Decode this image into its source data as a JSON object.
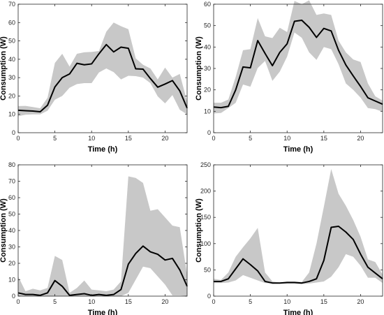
{
  "chart_data": [
    {
      "type": "area",
      "xlabel": "Time (h)",
      "ylabel": "Consumption (W)",
      "xlim": [
        0,
        23
      ],
      "ylim": [
        0,
        70
      ],
      "xticks": [
        0,
        5,
        10,
        15,
        20
      ],
      "yticks": [
        0,
        10,
        20,
        30,
        40,
        50,
        60,
        70
      ],
      "grid": false,
      "x": [
        0,
        1,
        2,
        3,
        4,
        5,
        6,
        7,
        8,
        9,
        10,
        11,
        12,
        13,
        14,
        15,
        16,
        17,
        18,
        19,
        20,
        21,
        22,
        23
      ],
      "series": [
        {
          "role": "mean",
          "values": [
            12.2,
            12,
            11.8,
            11.4,
            15,
            24.9,
            30,
            32,
            37.8,
            37,
            37.5,
            43,
            48,
            44,
            46.6,
            46,
            34.8,
            34.6,
            29.5,
            24.8,
            26.5,
            28.4,
            22.8,
            13.4
          ]
        },
        {
          "role": "upper",
          "values": [
            14.5,
            14.6,
            14,
            13.3,
            19,
            38,
            43,
            36,
            43,
            43.8,
            44,
            44.5,
            55,
            60,
            58,
            56.4,
            40.5,
            37,
            35,
            29,
            35.5,
            30,
            32,
            17
          ]
        },
        {
          "role": "lower",
          "values": [
            9,
            9.8,
            10,
            10,
            12,
            18,
            20,
            24.5,
            26.5,
            27,
            27,
            32.8,
            35,
            33,
            29,
            31,
            30.8,
            30,
            27,
            19.8,
            16,
            20.5,
            12.5,
            10
          ]
        }
      ]
    },
    {
      "type": "area",
      "xlabel": "Time (h)",
      "ylabel": "Consumption (W)",
      "xlim": [
        0,
        23
      ],
      "ylim": [
        0,
        60
      ],
      "xticks": [
        0,
        5,
        10,
        15,
        20
      ],
      "yticks": [
        0,
        10,
        20,
        30,
        40,
        50,
        60
      ],
      "grid": false,
      "x": [
        0,
        1,
        2,
        3,
        4,
        5,
        6,
        7,
        8,
        9,
        10,
        11,
        12,
        13,
        14,
        15,
        16,
        17,
        18,
        19,
        20,
        21,
        22,
        23
      ],
      "series": [
        {
          "role": "mean",
          "values": [
            12,
            11.7,
            12.3,
            20,
            30.7,
            30.3,
            43,
            37,
            31.3,
            37.5,
            41.5,
            52,
            52.5,
            49.2,
            44.5,
            48.7,
            47.5,
            38.5,
            31.6,
            26.5,
            21.6,
            16.3,
            14.8,
            13.3
          ]
        },
        {
          "role": "upper",
          "values": [
            14,
            14,
            15.5,
            26,
            38.5,
            39,
            53.5,
            45,
            44.2,
            49,
            47,
            61.5,
            60,
            61.8,
            55,
            55.7,
            55,
            43,
            37.5,
            34.2,
            33,
            23,
            17,
            15
          ]
        },
        {
          "role": "lower",
          "values": [
            9,
            9.2,
            11.5,
            14,
            22.5,
            21.5,
            30.2,
            33.5,
            24.2,
            28.5,
            35.5,
            46.8,
            44.3,
            37.5,
            34,
            40,
            39,
            32,
            23,
            20,
            16.4,
            11.5,
            11,
            9.8
          ]
        }
      ]
    },
    {
      "type": "area",
      "xlabel": "Time (h)",
      "ylabel": "Consumption (W)",
      "xlim": [
        0,
        23
      ],
      "ylim": [
        0,
        80
      ],
      "xticks": [
        0,
        5,
        10,
        15,
        20
      ],
      "yticks": [
        0,
        10,
        20,
        30,
        40,
        50,
        60,
        70,
        80
      ],
      "grid": false,
      "x": [
        0,
        1,
        2,
        3,
        4,
        5,
        6,
        7,
        8,
        9,
        10,
        11,
        12,
        13,
        14,
        15,
        16,
        17,
        18,
        19,
        20,
        21,
        22,
        23
      ],
      "series": [
        {
          "role": "mean",
          "values": [
            2,
            1,
            1,
            0.5,
            2,
            9.5,
            6,
            0.5,
            1,
            1.5,
            0.5,
            1,
            0.5,
            1,
            4,
            19.5,
            26,
            30.5,
            27,
            25.5,
            22,
            23,
            16,
            6
          ]
        },
        {
          "role": "upper",
          "values": [
            12,
            3,
            4.5,
            3.5,
            5,
            24.5,
            22,
            2,
            5,
            9.5,
            4,
            3.5,
            3,
            4,
            9,
            73,
            72,
            69,
            52,
            53,
            48,
            43,
            42,
            13
          ]
        },
        {
          "role": "lower",
          "values": [
            0,
            0,
            0,
            0,
            0,
            0,
            0,
            0,
            0,
            0,
            0,
            0,
            0,
            0,
            0,
            2,
            10,
            18,
            17,
            12,
            7,
            0.5,
            0.5,
            0
          ]
        }
      ]
    },
    {
      "type": "area",
      "xlabel": "Time (h)",
      "ylabel": "Consumption (W)",
      "xlim": [
        0,
        23
      ],
      "ylim": [
        0,
        250
      ],
      "xticks": [
        0,
        5,
        10,
        15,
        20
      ],
      "yticks": [
        0,
        50,
        100,
        150,
        200,
        250
      ],
      "grid": false,
      "x": [
        0,
        1,
        2,
        3,
        4,
        5,
        6,
        7,
        8,
        9,
        10,
        11,
        12,
        13,
        14,
        15,
        16,
        17,
        18,
        19,
        20,
        21,
        22,
        23
      ],
      "series": [
        {
          "role": "mean",
          "values": [
            28,
            28,
            33,
            52,
            71,
            60,
            48,
            28,
            25,
            25,
            26,
            26,
            25,
            28,
            33,
            68,
            131,
            133,
            122,
            108,
            80,
            55,
            44,
            33
          ]
        },
        {
          "role": "upper",
          "values": [
            33,
            31,
            45,
            75,
            93,
            110,
            130,
            45,
            28,
            26,
            28,
            28,
            27,
            45,
            100,
            170,
            242,
            195,
            172,
            145,
            113,
            70,
            65,
            41
          ]
        },
        {
          "role": "lower",
          "values": [
            25,
            25,
            26,
            30,
            40,
            35,
            30,
            25,
            24,
            24,
            24,
            24,
            23,
            24,
            26,
            28,
            37,
            55,
            80,
            75,
            58,
            35,
            35,
            25
          ]
        }
      ]
    }
  ]
}
